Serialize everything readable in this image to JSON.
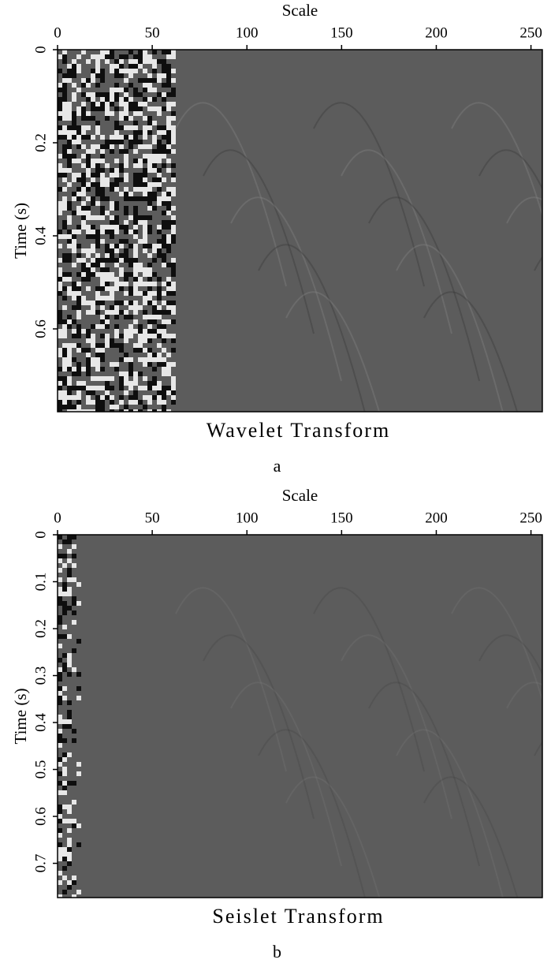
{
  "chart_data": [
    {
      "type": "image",
      "xlabel": "Scale",
      "ylabel": "Time (s)",
      "title": "Wavelet Transform",
      "caption": "a",
      "xlim": [
        0,
        256
      ],
      "xticks": [
        0,
        50,
        100,
        150,
        200,
        250
      ],
      "ylim": [
        0,
        0.778
      ],
      "yticks": [
        0,
        0.2,
        0.4,
        0.6
      ]
    },
    {
      "type": "image",
      "xlabel": "Scale",
      "ylabel": "Time (s)",
      "title": "Seislet Transform",
      "caption": "b",
      "xlim": [
        0,
        256
      ],
      "xticks": [
        0,
        50,
        100,
        150,
        200,
        250
      ],
      "ylim": [
        0,
        0.773
      ],
      "yticks": [
        0,
        0.1,
        0.2,
        0.3,
        0.4,
        0.5,
        0.6,
        0.7
      ]
    }
  ]
}
